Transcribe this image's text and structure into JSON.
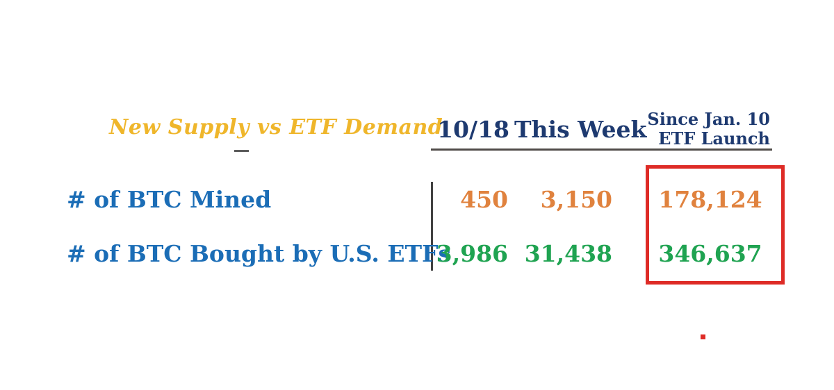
{
  "table": {
    "title": "New Supply vs ETF Demand",
    "headers": {
      "col1": "10/18",
      "col2": "This Week",
      "col3_line1": "Since Jan. 10",
      "col3_line2": "ETF Launch"
    },
    "rows": [
      {
        "label": "# of BTC Mined",
        "values": [
          "450",
          "3,150",
          "178,124"
        ]
      },
      {
        "label": "# of BTC Bought by U.S. ETFs",
        "values": [
          "3,986",
          "31,438",
          "346,637"
        ]
      }
    ]
  },
  "colors": {
    "title_gold": "#EFB62B",
    "header_navy": "#1E3A70",
    "label_blue": "#1B6DB6",
    "mined_orange": "#E0823E",
    "etf_green": "#1FA351",
    "highlight_red": "#DE2B26",
    "line_gray": "#4A4A4A"
  },
  "chart_data": {
    "type": "table",
    "title": "New Supply vs ETF Demand",
    "columns": [
      "10/18",
      "This Week",
      "Since Jan. 10 ETF Launch"
    ],
    "rows": [
      {
        "label": "# of BTC Mined",
        "values": [
          450,
          3150,
          178124
        ]
      },
      {
        "label": "# of BTC Bought by U.S. ETFs",
        "values": [
          3986,
          31438,
          346637
        ]
      }
    ],
    "layout_hints": {
      "row_value_colors": {
        "# of BTC Mined": "orange",
        "# of BTC Bought by U.S. ETFs": "green"
      },
      "highlight": "red rectangle around the 'Since Jan. 10 ETF Launch' column values"
    },
    "annotations": [
      "Red box highlights 178,124 and 346,637 in the Since Jan. 10 ETF Launch column",
      "Small red square dot mark below the table near bottom right"
    ]
  }
}
